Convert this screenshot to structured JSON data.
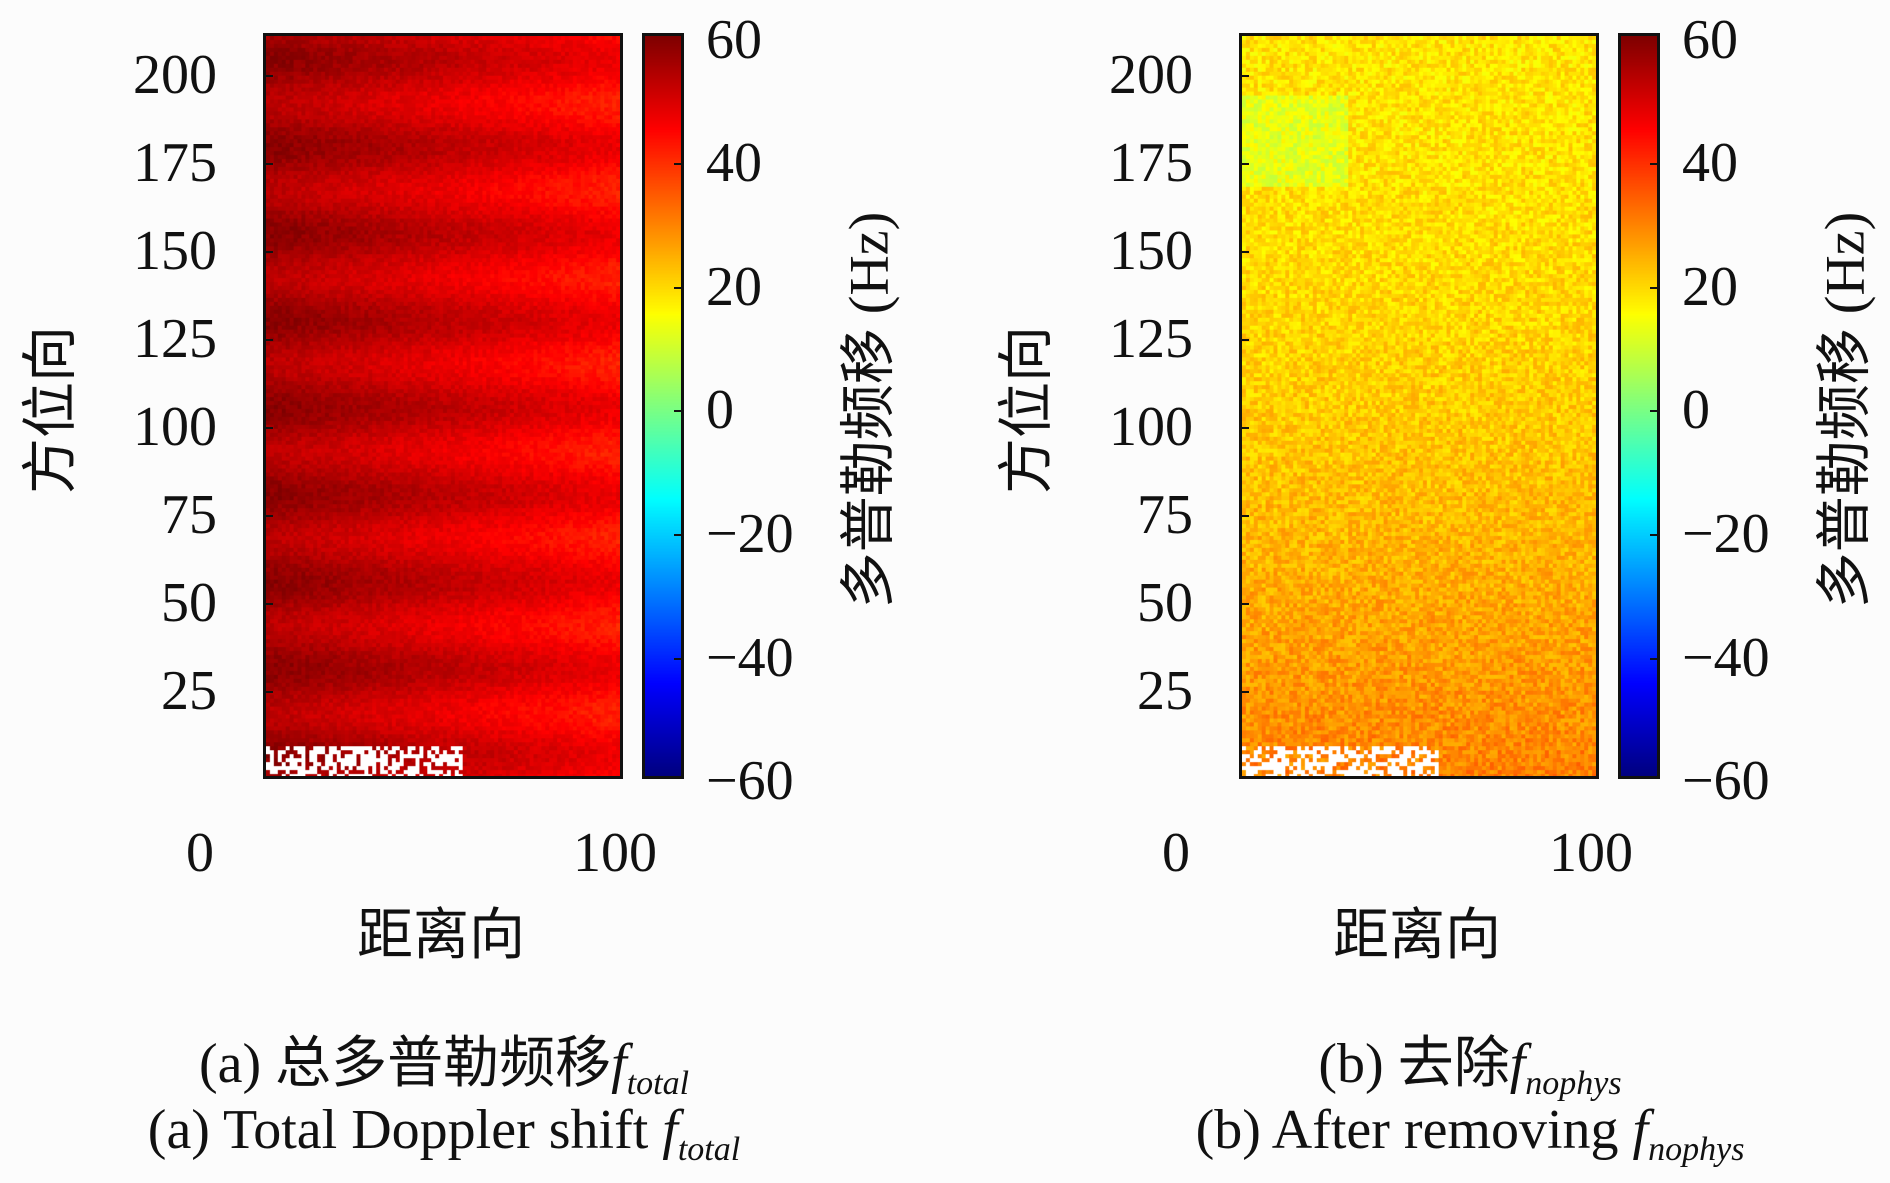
{
  "chart_data": [
    {
      "type": "heatmap",
      "panel": "a",
      "ylabel": "方位向",
      "xlabel": "距离向",
      "colorbar_label": "多普勒频移 (Hz)",
      "colorbar_ticks": [
        "60",
        "40",
        "20",
        "0",
        "−20",
        "−40",
        "−60"
      ],
      "clim": [
        -60,
        60
      ],
      "colormap": "jet",
      "yticks": [
        "200",
        "175",
        "150",
        "125",
        "100",
        "75",
        "50",
        "25"
      ],
      "xticks": [
        "0",
        "100"
      ],
      "xlim": [
        0,
        100
      ],
      "ylim": [
        0,
        212
      ],
      "value_summary": {
        "mean": 50,
        "left_edge": 56,
        "right_edge": 44,
        "pattern": "horizontal banding"
      },
      "caption_cn_prefix": "(a) 总多普勒频移",
      "caption_en_prefix": "(a) Total Doppler shift ",
      "caption_var": "f",
      "caption_sub": "total"
    },
    {
      "type": "heatmap",
      "panel": "b",
      "ylabel": "方位向",
      "xlabel": "距离向",
      "colorbar_label": "多普勒频移 (Hz)",
      "colorbar_ticks": [
        "60",
        "40",
        "20",
        "0",
        "−20",
        "−40",
        "−60"
      ],
      "clim": [
        -60,
        60
      ],
      "colormap": "jet",
      "yticks": [
        "200",
        "175",
        "150",
        "125",
        "100",
        "75",
        "50",
        "25"
      ],
      "xticks": [
        "0",
        "100"
      ],
      "xlim": [
        0,
        100
      ],
      "ylim": [
        0,
        212
      ],
      "value_summary": {
        "mean": 22,
        "top": 18,
        "bottom": 30,
        "pattern": "noisy, near-uniform"
      },
      "caption_cn_prefix": "(b) 去除",
      "caption_en_prefix": "(b) After removing ",
      "caption_var": "f",
      "caption_sub": "nophys"
    }
  ]
}
